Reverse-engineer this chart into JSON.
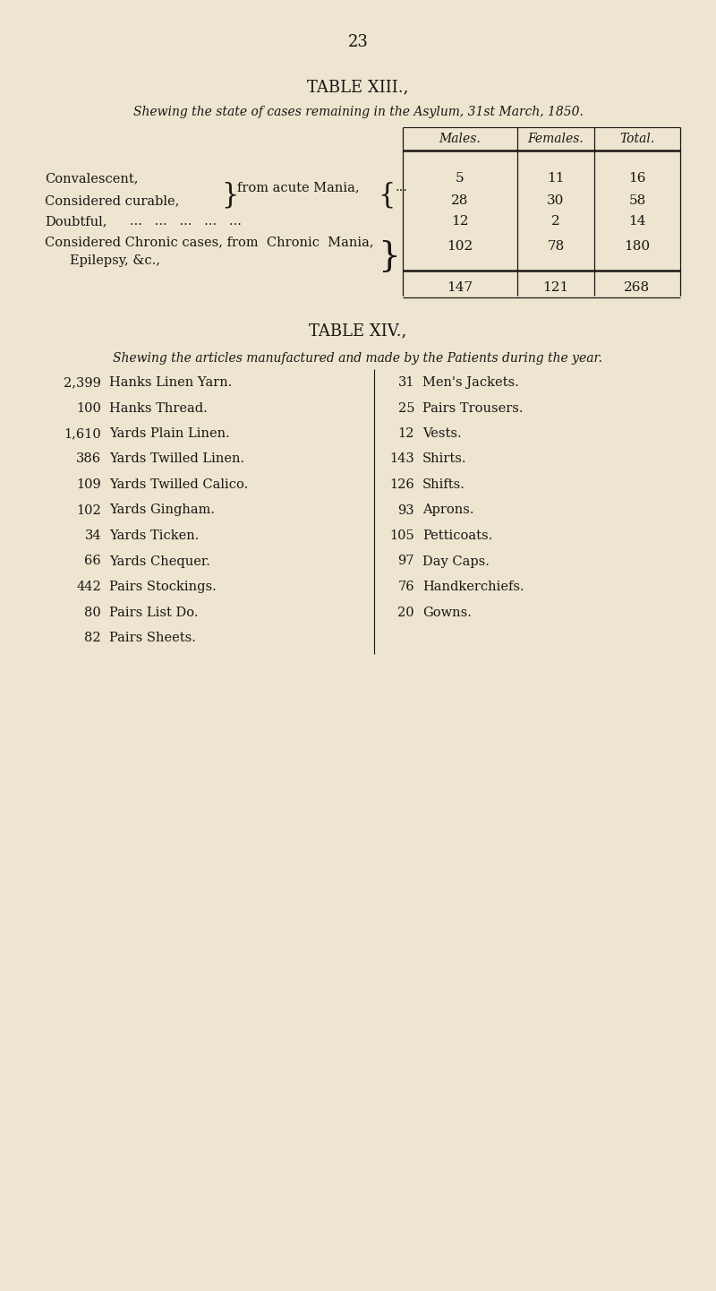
{
  "bg_color": "#ede5d0",
  "text_color": "#1a1612",
  "page_number": "23",
  "table13_title": "TABLE XIII.,",
  "table13_subtitle": "Shewing the state of cases remaining in the Asylum, 31st March, 1850.",
  "table13_col_headers": [
    "Males.",
    "Females.",
    "Total."
  ],
  "table13_totals": [
    "147",
    "121",
    "268"
  ],
  "table14_title": "TABLE XIV.,",
  "table14_subtitle": "Shewing the articles manufactured and made by the Patients during the year.",
  "table14_left": [
    [
      "2,399",
      "Hanks Linen Yarn."
    ],
    [
      "100",
      "Hanks Thread."
    ],
    [
      "1,610",
      "Yards Plain Linen."
    ],
    [
      "386",
      "Yards Twilled Linen."
    ],
    [
      "109",
      "Yards Twilled Calico."
    ],
    [
      "102",
      "Yards Gingham."
    ],
    [
      "34",
      "Yards Ticken."
    ],
    [
      "66",
      "Yards Chequer."
    ],
    [
      "442",
      "Pairs Stockings."
    ],
    [
      "80",
      "Pairs List Do."
    ],
    [
      "82",
      "Pairs Sheets."
    ]
  ],
  "table14_right": [
    [
      "31",
      "Men's Jackets."
    ],
    [
      "25",
      "Pairs Trousers."
    ],
    [
      "12",
      "Vests."
    ],
    [
      "143",
      "Shirts."
    ],
    [
      "126",
      "Shifts."
    ],
    [
      "93",
      "Aprons."
    ],
    [
      "105",
      "Petticoats."
    ],
    [
      "97",
      "Day Caps."
    ],
    [
      "76",
      "Handkerchiefs."
    ],
    [
      "20",
      "Gowns."
    ]
  ]
}
